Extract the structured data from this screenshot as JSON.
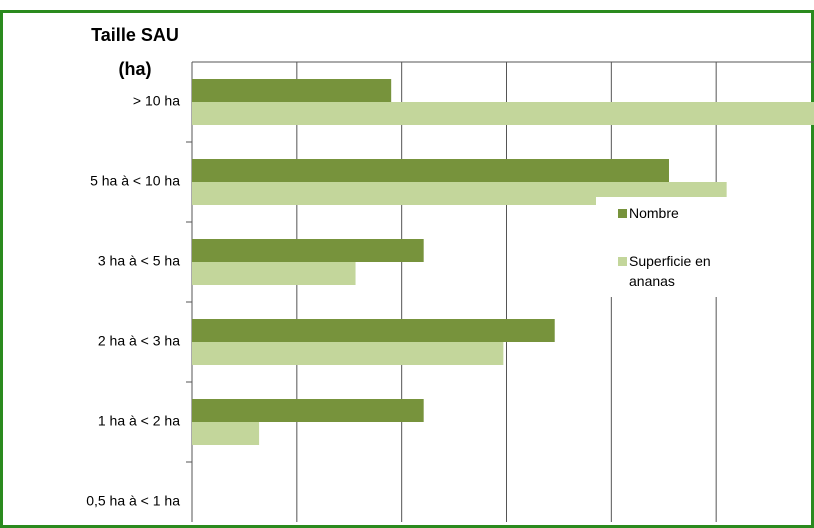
{
  "chart_data": {
    "type": "hbar",
    "title_lines": [
      "Taille SAU",
      "(ha)"
    ],
    "categories": [
      "> 10 ha",
      "5 ha à  < 10 ha",
      "3 ha à < 5  ha",
      "2 ha à < 3 ha",
      "1 ha à < 2 ha",
      "0,5 ha à < 1 ha"
    ],
    "series": [
      {
        "name": "Nombre",
        "color": "#77933c",
        "values": [
          1.9,
          4.55,
          2.21,
          3.46,
          2.21,
          0
        ]
      },
      {
        "name": "Superficie en ananas",
        "color": "#c3d69b",
        "values": [
          6.0,
          5.1,
          1.56,
          2.97,
          0.64,
          0
        ]
      }
    ],
    "xlim": [
      0,
      6
    ],
    "xticks": [
      1,
      2,
      3,
      4,
      5,
      6
    ],
    "grid": true
  }
}
